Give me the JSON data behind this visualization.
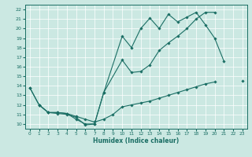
{
  "xlabel": "Humidex (Indice chaleur)",
  "bg_color": "#cbe8e2",
  "line_color": "#1a6e64",
  "grid_color": "#ffffff",
  "xlim": [
    -0.5,
    23.5
  ],
  "ylim": [
    9.5,
    22.5
  ],
  "xticks": [
    0,
    1,
    2,
    3,
    4,
    5,
    6,
    7,
    8,
    9,
    10,
    11,
    12,
    13,
    14,
    15,
    16,
    17,
    18,
    19,
    20,
    21,
    22,
    23
  ],
  "yticks": [
    10,
    11,
    12,
    13,
    14,
    15,
    16,
    17,
    18,
    19,
    20,
    21,
    22
  ],
  "line1_x": [
    0,
    1,
    2,
    3,
    4,
    5,
    6,
    7,
    8,
    10,
    11,
    12,
    13,
    14,
    15,
    16,
    17,
    18,
    19,
    20,
    21,
    22,
    23
  ],
  "line1_y": [
    13.8,
    12.0,
    11.2,
    11.2,
    11.1,
    10.5,
    10.0,
    10.0,
    13.3,
    19.2,
    18.0,
    20.0,
    21.1,
    20.0,
    21.5,
    20.7,
    21.2,
    21.7,
    20.4,
    19.0,
    16.6,
    null,
    null
  ],
  "line2_x": [
    0,
    1,
    2,
    3,
    4,
    5,
    6,
    7,
    8,
    10,
    11,
    12,
    13,
    14,
    15,
    16,
    17,
    18,
    19,
    20,
    21,
    22,
    23
  ],
  "line2_y": [
    13.8,
    12.0,
    11.2,
    11.1,
    11.0,
    10.7,
    9.9,
    10.0,
    13.3,
    16.7,
    15.4,
    15.5,
    16.2,
    17.7,
    18.5,
    19.2,
    20.0,
    21.0,
    21.7,
    21.7,
    null,
    null,
    null
  ],
  "line3_x": [
    1,
    2,
    3,
    4,
    5,
    6,
    7,
    8,
    9,
    10,
    11,
    12,
    13,
    14,
    15,
    16,
    17,
    18,
    19,
    20,
    21,
    22,
    23
  ],
  "line3_y": [
    12.0,
    11.2,
    11.2,
    11.1,
    10.8,
    10.5,
    10.2,
    10.5,
    11.0,
    11.8,
    12.0,
    12.2,
    12.4,
    12.7,
    13.0,
    13.3,
    13.6,
    13.9,
    14.2,
    14.4,
    null,
    null,
    14.5
  ]
}
